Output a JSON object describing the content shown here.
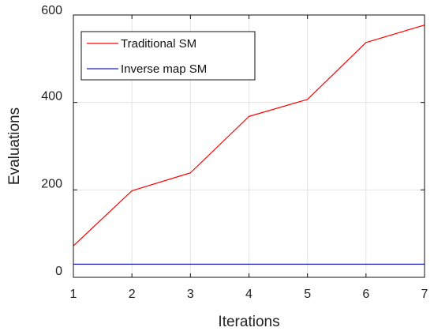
{
  "chart_data": {
    "type": "line",
    "xlabel": "Iterations",
    "ylabel": "Evaluations",
    "x": [
      1,
      2,
      3,
      4,
      5,
      6,
      7
    ],
    "xlim": [
      1,
      7
    ],
    "ylim": [
      0,
      600
    ],
    "xticks": [
      "1",
      "2",
      "3",
      "4",
      "5",
      "6",
      "7"
    ],
    "yticks": [
      {
        "value": 0,
        "label": "0"
      },
      {
        "value": 200,
        "label": "200"
      },
      {
        "value": 400,
        "label": "400"
      },
      {
        "value": 600,
        "label": "600"
      }
    ],
    "grid": true,
    "legend_position": "top-left",
    "series": [
      {
        "name": "Traditional SM",
        "color": "#ff0000",
        "values": [
          72,
          198,
          239,
          368,
          407,
          537,
          577
        ]
      },
      {
        "name": "Inverse map SM",
        "color": "#2020c0",
        "values": [
          30,
          30,
          30,
          30,
          30,
          30,
          30
        ]
      }
    ]
  }
}
